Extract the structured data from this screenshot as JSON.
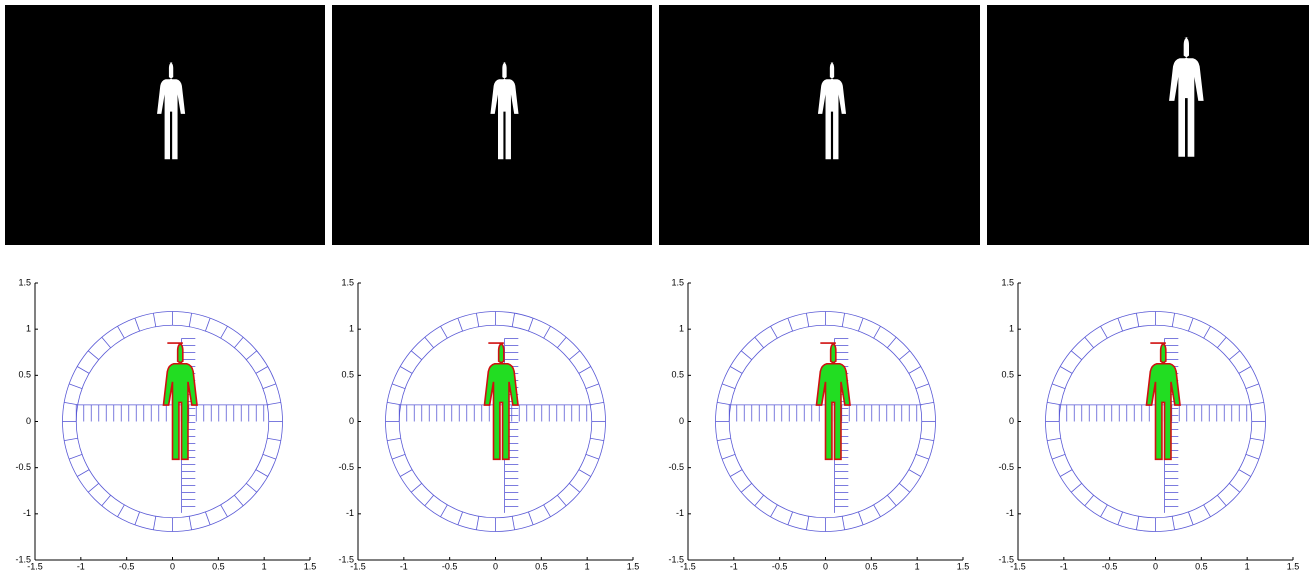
{
  "panels": [
    {
      "xlim": [
        -1.5,
        1.5
      ],
      "ylim": [
        -1.5,
        1.5
      ],
      "xticks": [
        -1.5,
        -1,
        -0.5,
        0,
        0.5,
        1,
        1.5
      ],
      "yticks": [
        -1.5,
        -1,
        -0.5,
        0,
        0.5,
        1,
        1.5
      ]
    },
    {
      "xlim": [
        -1.5,
        1.5
      ],
      "ylim": [
        -1.5,
        1.5
      ],
      "xticks": [
        -1.5,
        -1,
        -0.5,
        0,
        0.5,
        1,
        1.5
      ],
      "yticks": [
        -1.5,
        -1,
        -0.5,
        0,
        0.5,
        1,
        1.5
      ]
    },
    {
      "xlim": [
        -1.5,
        1.5
      ],
      "ylim": [
        -1.5,
        1.5
      ],
      "xticks": [
        -1.5,
        -1,
        -0.5,
        0,
        0.5,
        1,
        1.5
      ],
      "yticks": [
        -1.5,
        -1,
        -0.5,
        0,
        0.5,
        1,
        1.5
      ]
    },
    {
      "xlim": [
        -1.5,
        1.5
      ],
      "ylim": [
        -1.5,
        1.5
      ],
      "xticks": [
        -1.5,
        -1,
        -0.5,
        0,
        0.5,
        1,
        1.5
      ],
      "yticks": [
        -1.5,
        -1,
        -0.5,
        0,
        0.5,
        1,
        1.5
      ]
    }
  ]
}
